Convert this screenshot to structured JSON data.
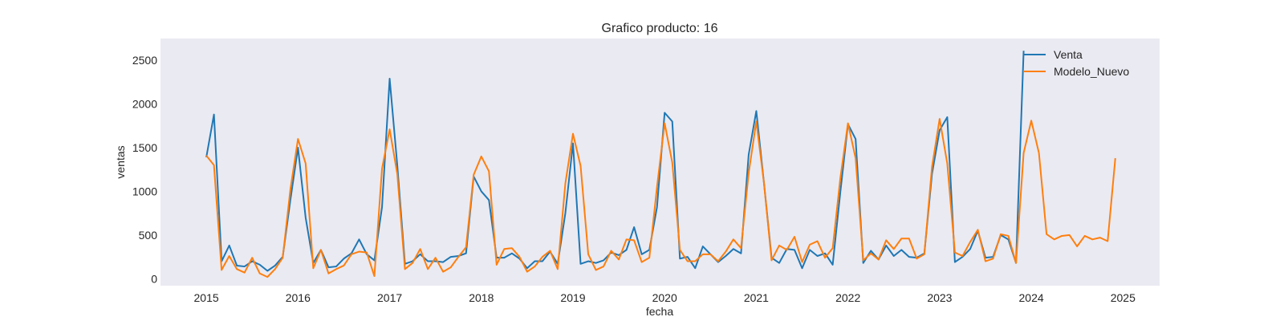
{
  "chart_data": {
    "type": "line",
    "title": "Grafico producto: 16",
    "xlabel": "fecha",
    "ylabel": "ventas",
    "xlim": [
      2014.5,
      2025.4
    ],
    "ylim": [
      -80,
      2750
    ],
    "x_ticks": [
      2015,
      2016,
      2017,
      2018,
      2019,
      2020,
      2021,
      2022,
      2023,
      2024,
      2025
    ],
    "x_tick_labels": [
      "2015",
      "2016",
      "2017",
      "2018",
      "2019",
      "2020",
      "2021",
      "2022",
      "2023",
      "2024",
      "2025"
    ],
    "y_ticks": [
      0,
      500,
      1000,
      1500,
      2000,
      2500
    ],
    "y_tick_labels": [
      "0",
      "500",
      "1000",
      "1500",
      "2000",
      "2500"
    ],
    "grid": false,
    "background": "#eaeaf2",
    "legend_position": "top-right",
    "series": [
      {
        "name": "Venta",
        "color": "#1f77b4",
        "x": [
          2015.0,
          2015.0833,
          2015.1667,
          2015.25,
          2015.3333,
          2015.4167,
          2015.5,
          2015.5833,
          2015.6667,
          2015.75,
          2015.8333,
          2015.9167,
          2016.0,
          2016.0833,
          2016.1667,
          2016.25,
          2016.3333,
          2016.4167,
          2016.5,
          2016.5833,
          2016.6667,
          2016.75,
          2016.8333,
          2016.9167,
          2017.0,
          2017.0833,
          2017.1667,
          2017.25,
          2017.3333,
          2017.4167,
          2017.5,
          2017.5833,
          2017.6667,
          2017.75,
          2017.8333,
          2017.9167,
          2018.0,
          2018.0833,
          2018.1667,
          2018.25,
          2018.3333,
          2018.4167,
          2018.5,
          2018.5833,
          2018.6667,
          2018.75,
          2018.8333,
          2018.9167,
          2019.0,
          2019.0833,
          2019.1667,
          2019.25,
          2019.3333,
          2019.4167,
          2019.5,
          2019.5833,
          2019.6667,
          2019.75,
          2019.8333,
          2019.9167,
          2020.0,
          2020.0833,
          2020.1667,
          2020.25,
          2020.3333,
          2020.4167,
          2020.5,
          2020.5833,
          2020.6667,
          2020.75,
          2020.8333,
          2020.9167,
          2021.0,
          2021.0833,
          2021.1667,
          2021.25,
          2021.3333,
          2021.4167,
          2021.5,
          2021.5833,
          2021.6667,
          2021.75,
          2021.8333,
          2021.9167,
          2022.0,
          2022.0833,
          2022.1667,
          2022.25,
          2022.3333,
          2022.4167,
          2022.5,
          2022.5833,
          2022.6667,
          2022.75,
          2022.8333,
          2022.9167,
          2023.0,
          2023.0833,
          2023.1667,
          2023.25,
          2023.3333,
          2023.4167,
          2023.5,
          2023.5833,
          2023.6667,
          2023.75,
          2023.8333,
          2023.9167
        ],
        "values": [
          1390,
          1880,
          200,
          380,
          150,
          140,
          200,
          160,
          90,
          150,
          250,
          900,
          1500,
          700,
          180,
          330,
          130,
          140,
          230,
          290,
          450,
          280,
          210,
          820,
          2290,
          1300,
          170,
          200,
          280,
          200,
          200,
          190,
          250,
          260,
          290,
          1170,
          1000,
          900,
          240,
          240,
          290,
          230,
          120,
          200,
          200,
          310,
          170,
          750,
          1550,
          170,
          200,
          180,
          210,
          300,
          270,
          330,
          590,
          280,
          330,
          820,
          1900,
          1800,
          230,
          250,
          120,
          370,
          280,
          190,
          260,
          340,
          290,
          1420,
          1920,
          1100,
          240,
          180,
          340,
          330,
          120,
          330,
          260,
          290,
          160,
          990,
          1770,
          1600,
          180,
          320,
          220,
          380,
          260,
          330,
          250,
          240,
          290,
          1200,
          1700,
          1850,
          190,
          250,
          340,
          550,
          240,
          250,
          500,
          450,
          180,
          2610
        ]
      },
      {
        "name": "Modelo_Nuevo",
        "color": "#ff7f0e",
        "x": [
          2015.0,
          2015.0833,
          2015.1667,
          2015.25,
          2015.3333,
          2015.4167,
          2015.5,
          2015.5833,
          2015.6667,
          2015.75,
          2015.8333,
          2015.9167,
          2016.0,
          2016.0833,
          2016.1667,
          2016.25,
          2016.3333,
          2016.4167,
          2016.5,
          2016.5833,
          2016.6667,
          2016.75,
          2016.8333,
          2016.9167,
          2017.0,
          2017.0833,
          2017.1667,
          2017.25,
          2017.3333,
          2017.4167,
          2017.5,
          2017.5833,
          2017.6667,
          2017.75,
          2017.8333,
          2017.9167,
          2018.0,
          2018.0833,
          2018.1667,
          2018.25,
          2018.3333,
          2018.4167,
          2018.5,
          2018.5833,
          2018.6667,
          2018.75,
          2018.8333,
          2018.9167,
          2019.0,
          2019.0833,
          2019.1667,
          2019.25,
          2019.3333,
          2019.4167,
          2019.5,
          2019.5833,
          2019.6667,
          2019.75,
          2019.8333,
          2019.9167,
          2020.0,
          2020.0833,
          2020.1667,
          2020.25,
          2020.3333,
          2020.4167,
          2020.5,
          2020.5833,
          2020.6667,
          2020.75,
          2020.8333,
          2020.9167,
          2021.0,
          2021.0833,
          2021.1667,
          2021.25,
          2021.3333,
          2021.4167,
          2021.5,
          2021.5833,
          2021.6667,
          2021.75,
          2021.8333,
          2021.9167,
          2022.0,
          2022.0833,
          2022.1667,
          2022.25,
          2022.3333,
          2022.4167,
          2022.5,
          2022.5833,
          2022.6667,
          2022.75,
          2022.8333,
          2022.9167,
          2023.0,
          2023.0833,
          2023.1667,
          2023.25,
          2023.3333,
          2023.4167,
          2023.5,
          2023.5833,
          2023.6667,
          2023.75,
          2023.8333,
          2023.9167,
          2024.0,
          2024.0833,
          2024.1667,
          2024.25,
          2024.3333,
          2024.4167,
          2024.5,
          2024.5833,
          2024.6667,
          2024.75,
          2024.8333,
          2024.9167
        ],
        "values": [
          1410,
          1300,
          100,
          260,
          110,
          70,
          240,
          60,
          20,
          110,
          240,
          1020,
          1600,
          1320,
          120,
          330,
          60,
          110,
          150,
          280,
          310,
          300,
          30,
          1260,
          1710,
          1200,
          110,
          180,
          340,
          110,
          240,
          80,
          130,
          250,
          360,
          1190,
          1400,
          1230,
          160,
          340,
          350,
          250,
          80,
          140,
          250,
          320,
          110,
          1090,
          1660,
          1290,
          280,
          100,
          140,
          320,
          220,
          450,
          440,
          190,
          240,
          1050,
          1780,
          1330,
          330,
          200,
          200,
          280,
          280,
          200,
          310,
          450,
          350,
          1210,
          1800,
          1100,
          210,
          380,
          330,
          480,
          190,
          390,
          430,
          240,
          350,
          1150,
          1780,
          1380,
          210,
          290,
          220,
          440,
          340,
          460,
          460,
          230,
          280,
          1280,
          1830,
          1320,
          300,
          260,
          420,
          560,
          200,
          230,
          510,
          490,
          180,
          1440,
          1810,
          1440,
          510,
          450,
          490,
          500,
          370,
          490,
          450,
          470,
          430,
          1380
        ]
      }
    ]
  }
}
